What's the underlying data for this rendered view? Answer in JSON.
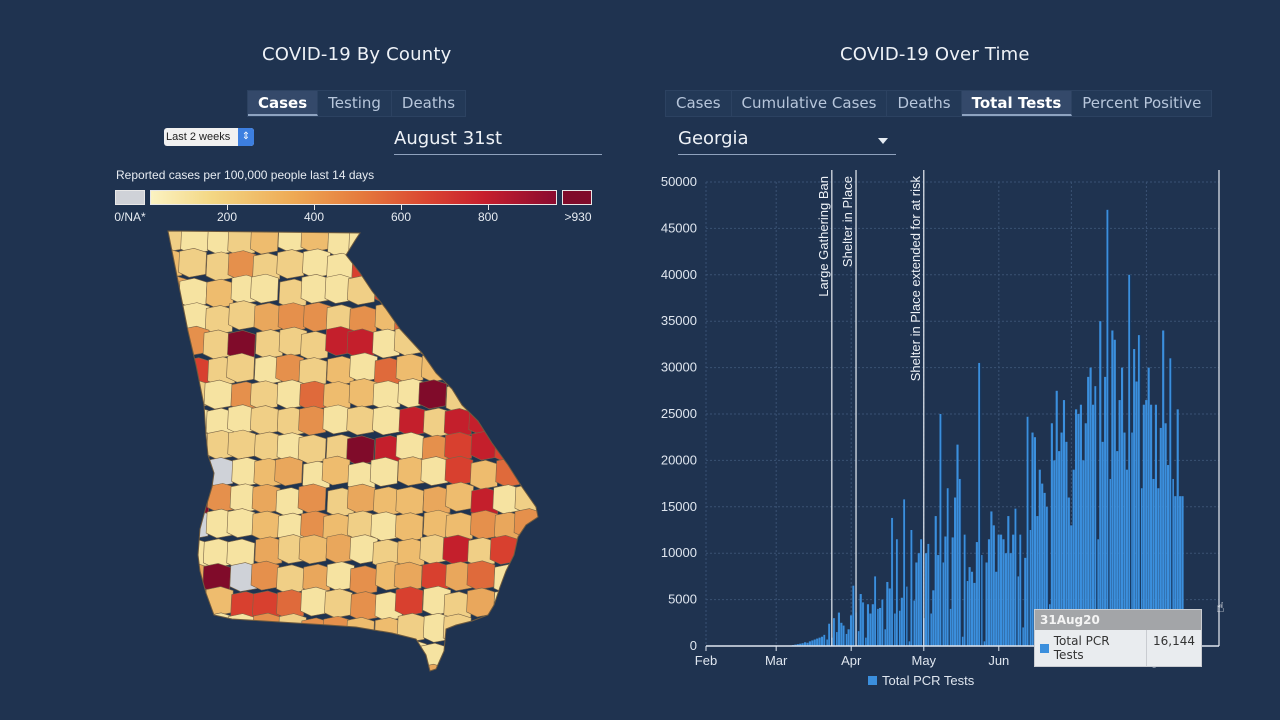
{
  "left_panel": {
    "title": "COVID-19 By County",
    "tabs": [
      {
        "label": "Cases",
        "active": true
      },
      {
        "label": "Testing",
        "active": false
      },
      {
        "label": "Deaths",
        "active": false
      }
    ],
    "period_select": {
      "value": "Last 2 weeks",
      "icon": "updown-arrows-icon"
    },
    "date": "August 31st",
    "legend": {
      "title": "Reported cases per 100,000 people last 14 days",
      "na_label": "0/NA*",
      "ticks": [
        "200",
        "400",
        "600",
        "800"
      ],
      "max_label": ">930",
      "colors": {
        "na": "#cfd2d8",
        "low": "#fbf2c2",
        "mid": "#e57a3d",
        "high": "#c71f2d",
        "max": "#800b2a"
      }
    },
    "map": {
      "state": "Georgia",
      "county_count_shown": "159"
    }
  },
  "right_panel": {
    "title": "COVID-19 Over Time",
    "tabs": [
      {
        "label": "Cases",
        "active": false
      },
      {
        "label": "Cumulative Cases",
        "active": false
      },
      {
        "label": "Deaths",
        "active": false
      },
      {
        "label": "Total Tests",
        "active": true
      },
      {
        "label": "Percent Positive",
        "active": false
      }
    ],
    "region_select": {
      "value": "Georgia",
      "icon": "caret-down-icon"
    },
    "tooltip": {
      "date": "31Aug20",
      "series": "Total PCR Tests",
      "value": "16,144",
      "swatch_color": "#3b8fdd"
    }
  },
  "chart_data": {
    "type": "bar",
    "title": "",
    "xlabel": "",
    "ylabel": "",
    "ylim": [
      0,
      50000
    ],
    "yticks": [
      "0",
      "5000",
      "10000",
      "15000",
      "20000",
      "25000",
      "30000",
      "35000",
      "40000",
      "45000",
      "50000"
    ],
    "xticks": [
      "Feb",
      "Mar",
      "Apr",
      "May",
      "Jun",
      "Jul",
      "Aug"
    ],
    "x_start": "2020-02-01",
    "x_end": "2020-08-31",
    "grid": true,
    "legend": {
      "position": "bottom",
      "entries": [
        "Total PCR Tests"
      ]
    },
    "bar_color": "#3b8fdd",
    "annotations": [
      {
        "date": "2020-03-24",
        "label": "Large Gathering Ban"
      },
      {
        "date": "2020-04-03",
        "label": "Shelter in Place"
      },
      {
        "date": "2020-05-01",
        "label": "Shelter in Place extended for at risk"
      },
      {
        "date": "2020-08-31",
        "label": ""
      }
    ],
    "series": [
      {
        "name": "Total PCR Tests",
        "start_date": "2020-03-08",
        "values": [
          100,
          150,
          200,
          250,
          300,
          400,
          350,
          500,
          600,
          700,
          800,
          900,
          1000,
          1200,
          700,
          2400,
          900,
          3000,
          1500,
          3600,
          2500,
          2200,
          1300,
          1800,
          3300,
          6500,
          3600,
          1600,
          5600,
          4700,
          900,
          4500,
          3500,
          4500,
          7500,
          4000,
          4100,
          5000,
          1800,
          6900,
          6200,
          13800,
          3500,
          11500,
          3800,
          5200,
          15800,
          6400,
          500,
          12500,
          4900,
          9000,
          10000,
          11500,
          3000,
          10000,
          11000,
          3500,
          6000,
          14000,
          9800,
          25000,
          9000,
          11800,
          17000,
          4000,
          11700,
          16000,
          21700,
          18000,
          1000,
          12000,
          7000,
          8500,
          8000,
          6800,
          11200,
          30500,
          9800,
          500,
          9000,
          11500,
          14500,
          13000,
          8000,
          12000,
          12000,
          11500,
          10000,
          14000,
          10000,
          12000,
          14800,
          7500,
          12000,
          2000,
          9500,
          24700,
          12500,
          23000,
          22500,
          14000,
          19000,
          17500,
          16500,
          15000,
          4500,
          24000,
          20000,
          27500,
          21000,
          23000,
          26500,
          22000,
          16000,
          13000,
          19000,
          25500,
          25000,
          26000,
          20000,
          24000,
          29000,
          30000,
          26000,
          28000,
          11500,
          35000,
          22000,
          29000,
          47000,
          18000,
          34000,
          33000,
          21000,
          26500,
          30000,
          23000,
          19000,
          40000,
          23000,
          32000,
          28500,
          33500,
          17000,
          26000,
          26500,
          30000,
          26000,
          18000,
          26000,
          17000,
          23500,
          34000,
          24000,
          19500,
          31000,
          18000,
          16144,
          25500,
          16144,
          16144
        ]
      }
    ]
  }
}
